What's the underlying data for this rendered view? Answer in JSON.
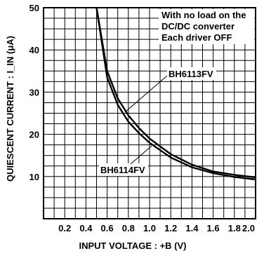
{
  "chart_data": {
    "type": "line",
    "title": "",
    "xlabel": "INPUT VOLTAGE : +B (V)",
    "ylabel": "QUIESCENT CURRENT : I_IN (μA)",
    "xlim": [
      0,
      2.0
    ],
    "ylim": [
      0,
      50
    ],
    "x_ticks": [
      0.2,
      0.4,
      0.6,
      0.8,
      1.0,
      1.2,
      1.4,
      1.6,
      1.8,
      2.0
    ],
    "x_tick_labels": [
      "0.2",
      "0.4",
      "0.6",
      "0.8",
      "1.0",
      "1.2",
      "1.4",
      "1.6",
      "1.8",
      "2.0"
    ],
    "y_ticks": [
      10,
      20,
      30,
      40,
      50
    ],
    "y_tick_labels": [
      "10",
      "20",
      "30",
      "40",
      "50"
    ],
    "grid": true,
    "series": [
      {
        "name": "BH6113FV",
        "x": [
          0.5,
          0.6,
          0.7,
          0.8,
          0.9,
          1.0,
          1.2,
          1.4,
          1.6,
          1.8,
          2.0
        ],
        "y": [
          50,
          35,
          28.5,
          24.5,
          21.5,
          19,
          15.3,
          12.8,
          11.2,
          10.4,
          9.8
        ]
      },
      {
        "name": "BH6114FV",
        "x": [
          0.5,
          0.6,
          0.7,
          0.8,
          0.9,
          1.0,
          1.2,
          1.4,
          1.6,
          1.8,
          2.0
        ],
        "y": [
          50,
          33.5,
          27,
          23,
          20.3,
          18,
          14.5,
          12.2,
          10.8,
          9.9,
          9.3
        ]
      }
    ],
    "annotations": {
      "note_lines": [
        "With no load on the",
        "DC/DC converter",
        "Each driver OFF"
      ],
      "series_label_upper": "BH6113FV",
      "series_label_lower": "BH6114FV"
    }
  }
}
